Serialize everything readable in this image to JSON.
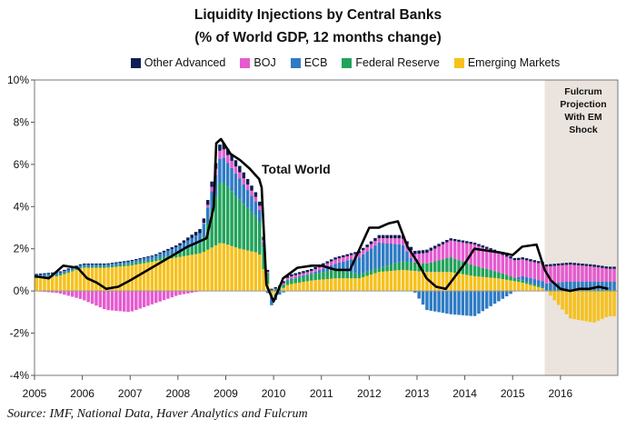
{
  "title": "Liquidity Injections by Central Banks",
  "subtitle": "(% of World GDP, 12 months change)",
  "source": "Source: IMF, National Data, Haver Analytics and Fulcrum",
  "projection_label": [
    "Fulcrum",
    "Projection",
    "With EM",
    "Shock"
  ],
  "total_label": "Total World",
  "colors": {
    "other_advanced": "#0d1f52",
    "boj": "#e55bd0",
    "ecb": "#2e7bc4",
    "federal_reserve": "#22a35a",
    "emerging_markets": "#f6c11d",
    "total": "#000000",
    "projection_shade": "#ebe3dd"
  },
  "chart_data": {
    "type": "bar",
    "stacked": true,
    "xlabel": "",
    "ylabel": "",
    "ylim": [
      -4,
      10
    ],
    "y_ticks": [
      "-4%",
      "-2%",
      "0%",
      "2%",
      "4%",
      "6%",
      "8%",
      "10%"
    ],
    "y_tick_values": [
      -4,
      -2,
      0,
      2,
      4,
      6,
      8,
      10
    ],
    "x_ticks": [
      "2005",
      "2006",
      "2007",
      "2008",
      "2009",
      "2010",
      "2011",
      "2012",
      "2013",
      "2014",
      "2015",
      "2016"
    ],
    "legend_position": "top",
    "projection_start_year": 2015.67,
    "x_range": [
      2005,
      2017.2
    ],
    "series": [
      {
        "name": "Other Advanced",
        "key": "other_advanced",
        "x": [
          2005.0,
          2005.5,
          2006.0,
          2006.5,
          2007.0,
          2007.5,
          2008.0,
          2008.5,
          2008.9,
          2009.3,
          2009.7,
          2009.95,
          2010.3,
          2010.8,
          2011.3,
          2011.8,
          2012.2,
          2012.7,
          2013.2,
          2013.7,
          2014.2,
          2014.7,
          2015.2,
          2015.67,
          2016.2,
          2016.7,
          2017.0
        ],
        "values": [
          0.05,
          0.05,
          0.05,
          0.05,
          0.05,
          0.05,
          0.1,
          0.2,
          0.3,
          0.3,
          0.2,
          0.05,
          0.1,
          0.1,
          0.1,
          0.1,
          0.15,
          0.15,
          0.15,
          0.1,
          0.1,
          0.1,
          0.1,
          0.1,
          0.1,
          0.1,
          0.1
        ]
      },
      {
        "name": "BOJ",
        "key": "boj",
        "x": [
          2005.0,
          2005.5,
          2006.0,
          2006.5,
          2007.0,
          2007.5,
          2008.0,
          2008.5,
          2008.9,
          2009.3,
          2009.7,
          2009.95,
          2010.3,
          2010.8,
          2011.3,
          2011.8,
          2012.2,
          2012.7,
          2013.2,
          2013.7,
          2014.2,
          2014.7,
          2015.2,
          2015.67,
          2016.2,
          2016.7,
          2017.0
        ],
        "values": [
          0.0,
          -0.1,
          -0.4,
          -0.9,
          -1.0,
          -0.6,
          -0.2,
          0.0,
          0.4,
          0.3,
          0.2,
          0.0,
          0.1,
          0.1,
          0.2,
          0.2,
          0.2,
          0.3,
          0.5,
          0.8,
          1.0,
          0.9,
          0.8,
          0.8,
          0.8,
          0.7,
          0.6
        ]
      },
      {
        "name": "ECB",
        "key": "ecb",
        "x": [
          2005.0,
          2005.5,
          2006.0,
          2006.5,
          2007.0,
          2007.5,
          2008.0,
          2008.5,
          2008.9,
          2009.3,
          2009.7,
          2009.95,
          2010.3,
          2010.8,
          2011.3,
          2011.8,
          2012.2,
          2012.7,
          2013.2,
          2013.7,
          2014.2,
          2014.7,
          2015.2,
          2015.67,
          2016.2,
          2016.7,
          2017.0
        ],
        "values": [
          0.1,
          0.1,
          0.1,
          0.1,
          0.1,
          0.15,
          0.3,
          0.5,
          1.2,
          1.0,
          0.6,
          -0.4,
          0.05,
          0.05,
          0.3,
          0.8,
          1.2,
          0.8,
          -0.9,
          -1.1,
          -1.2,
          -0.5,
          0.2,
          0.3,
          0.4,
          0.4,
          0.4
        ]
      },
      {
        "name": "Federal Reserve",
        "key": "federal_reserve",
        "x": [
          2005.0,
          2005.5,
          2006.0,
          2006.5,
          2007.0,
          2007.5,
          2008.0,
          2008.5,
          2008.9,
          2009.3,
          2009.7,
          2009.95,
          2010.3,
          2010.8,
          2011.3,
          2011.8,
          2012.2,
          2012.7,
          2013.2,
          2013.7,
          2014.2,
          2014.7,
          2015.2,
          2015.67,
          2016.2,
          2016.7,
          2017.0
        ],
        "values": [
          0.05,
          0.05,
          0.05,
          0.05,
          0.1,
          0.1,
          0.2,
          0.5,
          3.0,
          2.3,
          1.6,
          0.05,
          0.2,
          0.3,
          0.4,
          0.2,
          0.2,
          0.4,
          0.4,
          0.7,
          0.5,
          0.3,
          0.1,
          0.05,
          0.05,
          0.05,
          0.05
        ]
      },
      {
        "name": "Emerging Markets",
        "key": "emerging_markets",
        "x": [
          2005.0,
          2005.5,
          2006.0,
          2006.5,
          2007.0,
          2007.5,
          2008.0,
          2008.5,
          2008.9,
          2009.3,
          2009.7,
          2009.95,
          2010.3,
          2010.8,
          2011.3,
          2011.8,
          2012.2,
          2012.7,
          2013.2,
          2013.7,
          2014.2,
          2014.7,
          2015.2,
          2015.67,
          2016.2,
          2016.7,
          2017.0
        ],
        "values": [
          0.6,
          0.7,
          1.1,
          1.1,
          1.2,
          1.4,
          1.6,
          1.8,
          2.3,
          2.0,
          1.8,
          -0.3,
          0.3,
          0.5,
          0.6,
          0.6,
          0.9,
          1.0,
          0.9,
          0.9,
          0.7,
          0.6,
          0.4,
          0.1,
          -1.3,
          -1.5,
          -1.2
        ]
      },
      {
        "name": "Total World",
        "key": "total",
        "kind": "line",
        "x": [
          2005.0,
          2005.3,
          2005.6,
          2005.9,
          2006.1,
          2006.3,
          2006.5,
          2006.75,
          2007.0,
          2007.3,
          2007.6,
          2007.9,
          2008.2,
          2008.4,
          2008.6,
          2008.75,
          2008.8,
          2008.9,
          2009.1,
          2009.3,
          2009.5,
          2009.7,
          2009.75,
          2009.85,
          2010.0,
          2010.2,
          2010.5,
          2010.8,
          2011.0,
          2011.3,
          2011.6,
          2011.9,
          2012.0,
          2012.2,
          2012.4,
          2012.6,
          2012.8,
          2013.0,
          2013.2,
          2013.4,
          2013.6,
          2013.8,
          2014.0,
          2014.2,
          2014.5,
          2014.8,
          2015.0,
          2015.2,
          2015.5,
          2015.67,
          2015.8,
          2016.0,
          2016.2,
          2016.4,
          2016.6,
          2016.8,
          2017.0
        ],
        "values": [
          0.7,
          0.6,
          1.2,
          1.1,
          0.6,
          0.4,
          0.1,
          0.2,
          0.5,
          0.9,
          1.3,
          1.7,
          2.1,
          2.3,
          2.5,
          4.0,
          7.0,
          7.2,
          6.5,
          6.2,
          5.8,
          5.3,
          4.9,
          0.3,
          -0.5,
          0.6,
          1.1,
          1.2,
          1.2,
          1.0,
          1.0,
          2.5,
          3.0,
          3.0,
          3.2,
          3.3,
          2.1,
          1.4,
          0.6,
          0.2,
          0.1,
          0.7,
          1.3,
          2.0,
          1.9,
          1.8,
          1.7,
          2.1,
          2.2,
          1.0,
          0.5,
          0.1,
          0.0,
          0.1,
          0.1,
          0.2,
          0.1
        ]
      }
    ]
  }
}
